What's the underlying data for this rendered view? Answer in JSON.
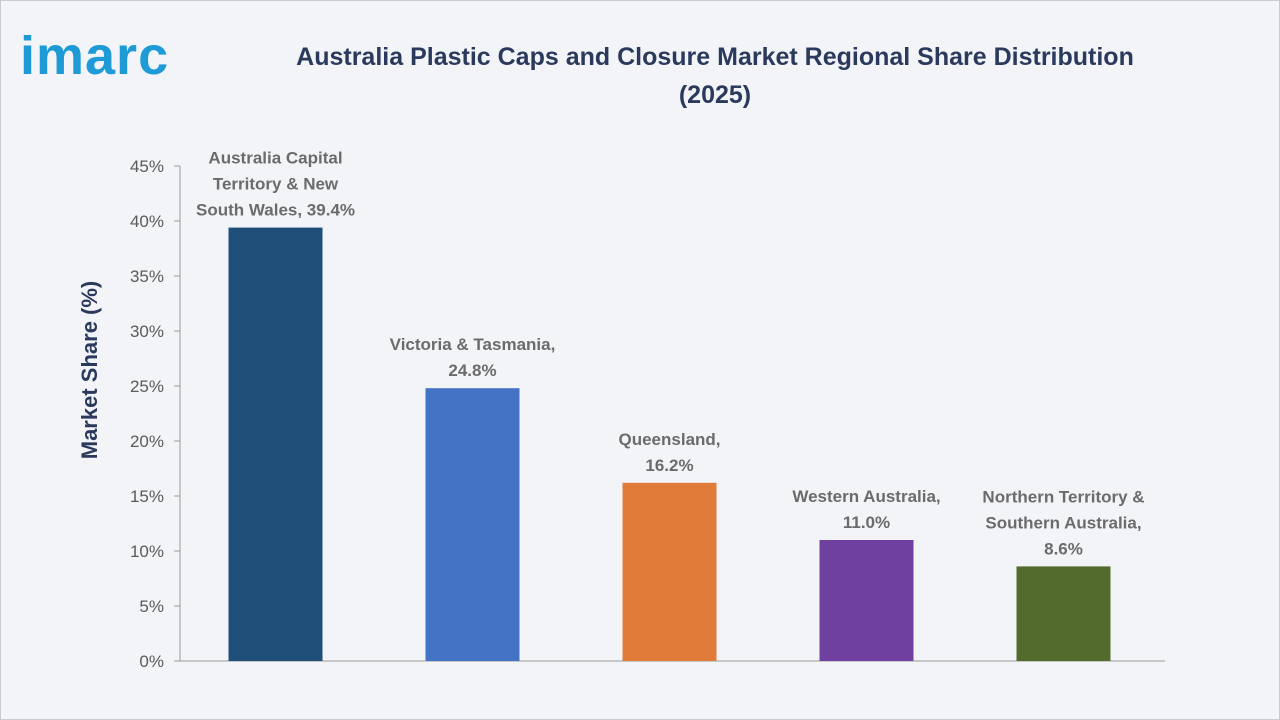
{
  "brand": {
    "logo_text": "imarc",
    "color": "#1e9ad6"
  },
  "header": {
    "title_line1": "Australia Plastic Caps and Closure Market Regional Share Distribution",
    "title_line2": "(2025)"
  },
  "chart_data": {
    "type": "bar",
    "title": "Australia Plastic Caps and Closure Market Regional Share Distribution (2025)",
    "xlabel": "",
    "ylabel": "Market Share (%)",
    "ylim": [
      0,
      45
    ],
    "yticks": [
      "0%",
      "5%",
      "10%",
      "15%",
      "20%",
      "25%",
      "30%",
      "35%",
      "40%",
      "45%"
    ],
    "grid": false,
    "legend": "none",
    "categories": [
      "Australia Capital Territory & New South Wales",
      "Victoria & Tasmania",
      "Queensland",
      "Western Australia",
      "Northern Territory & Southern Australia"
    ],
    "values": [
      39.4,
      24.8,
      16.2,
      11.0,
      8.6
    ],
    "colors": [
      "#1f4e79",
      "#4472c4",
      "#e07b39",
      "#7040a0",
      "#546b2e"
    ],
    "data_labels": [
      [
        "Australia Capital",
        "Territory & New",
        "South Wales, 39.4%"
      ],
      [
        "Victoria & Tasmania,",
        "24.8%"
      ],
      [
        "Queensland,",
        "16.2%"
      ],
      [
        "Western Australia,",
        "11.0%"
      ],
      [
        "Northern Territory &",
        "Southern Australia,",
        "8.6%"
      ]
    ]
  }
}
